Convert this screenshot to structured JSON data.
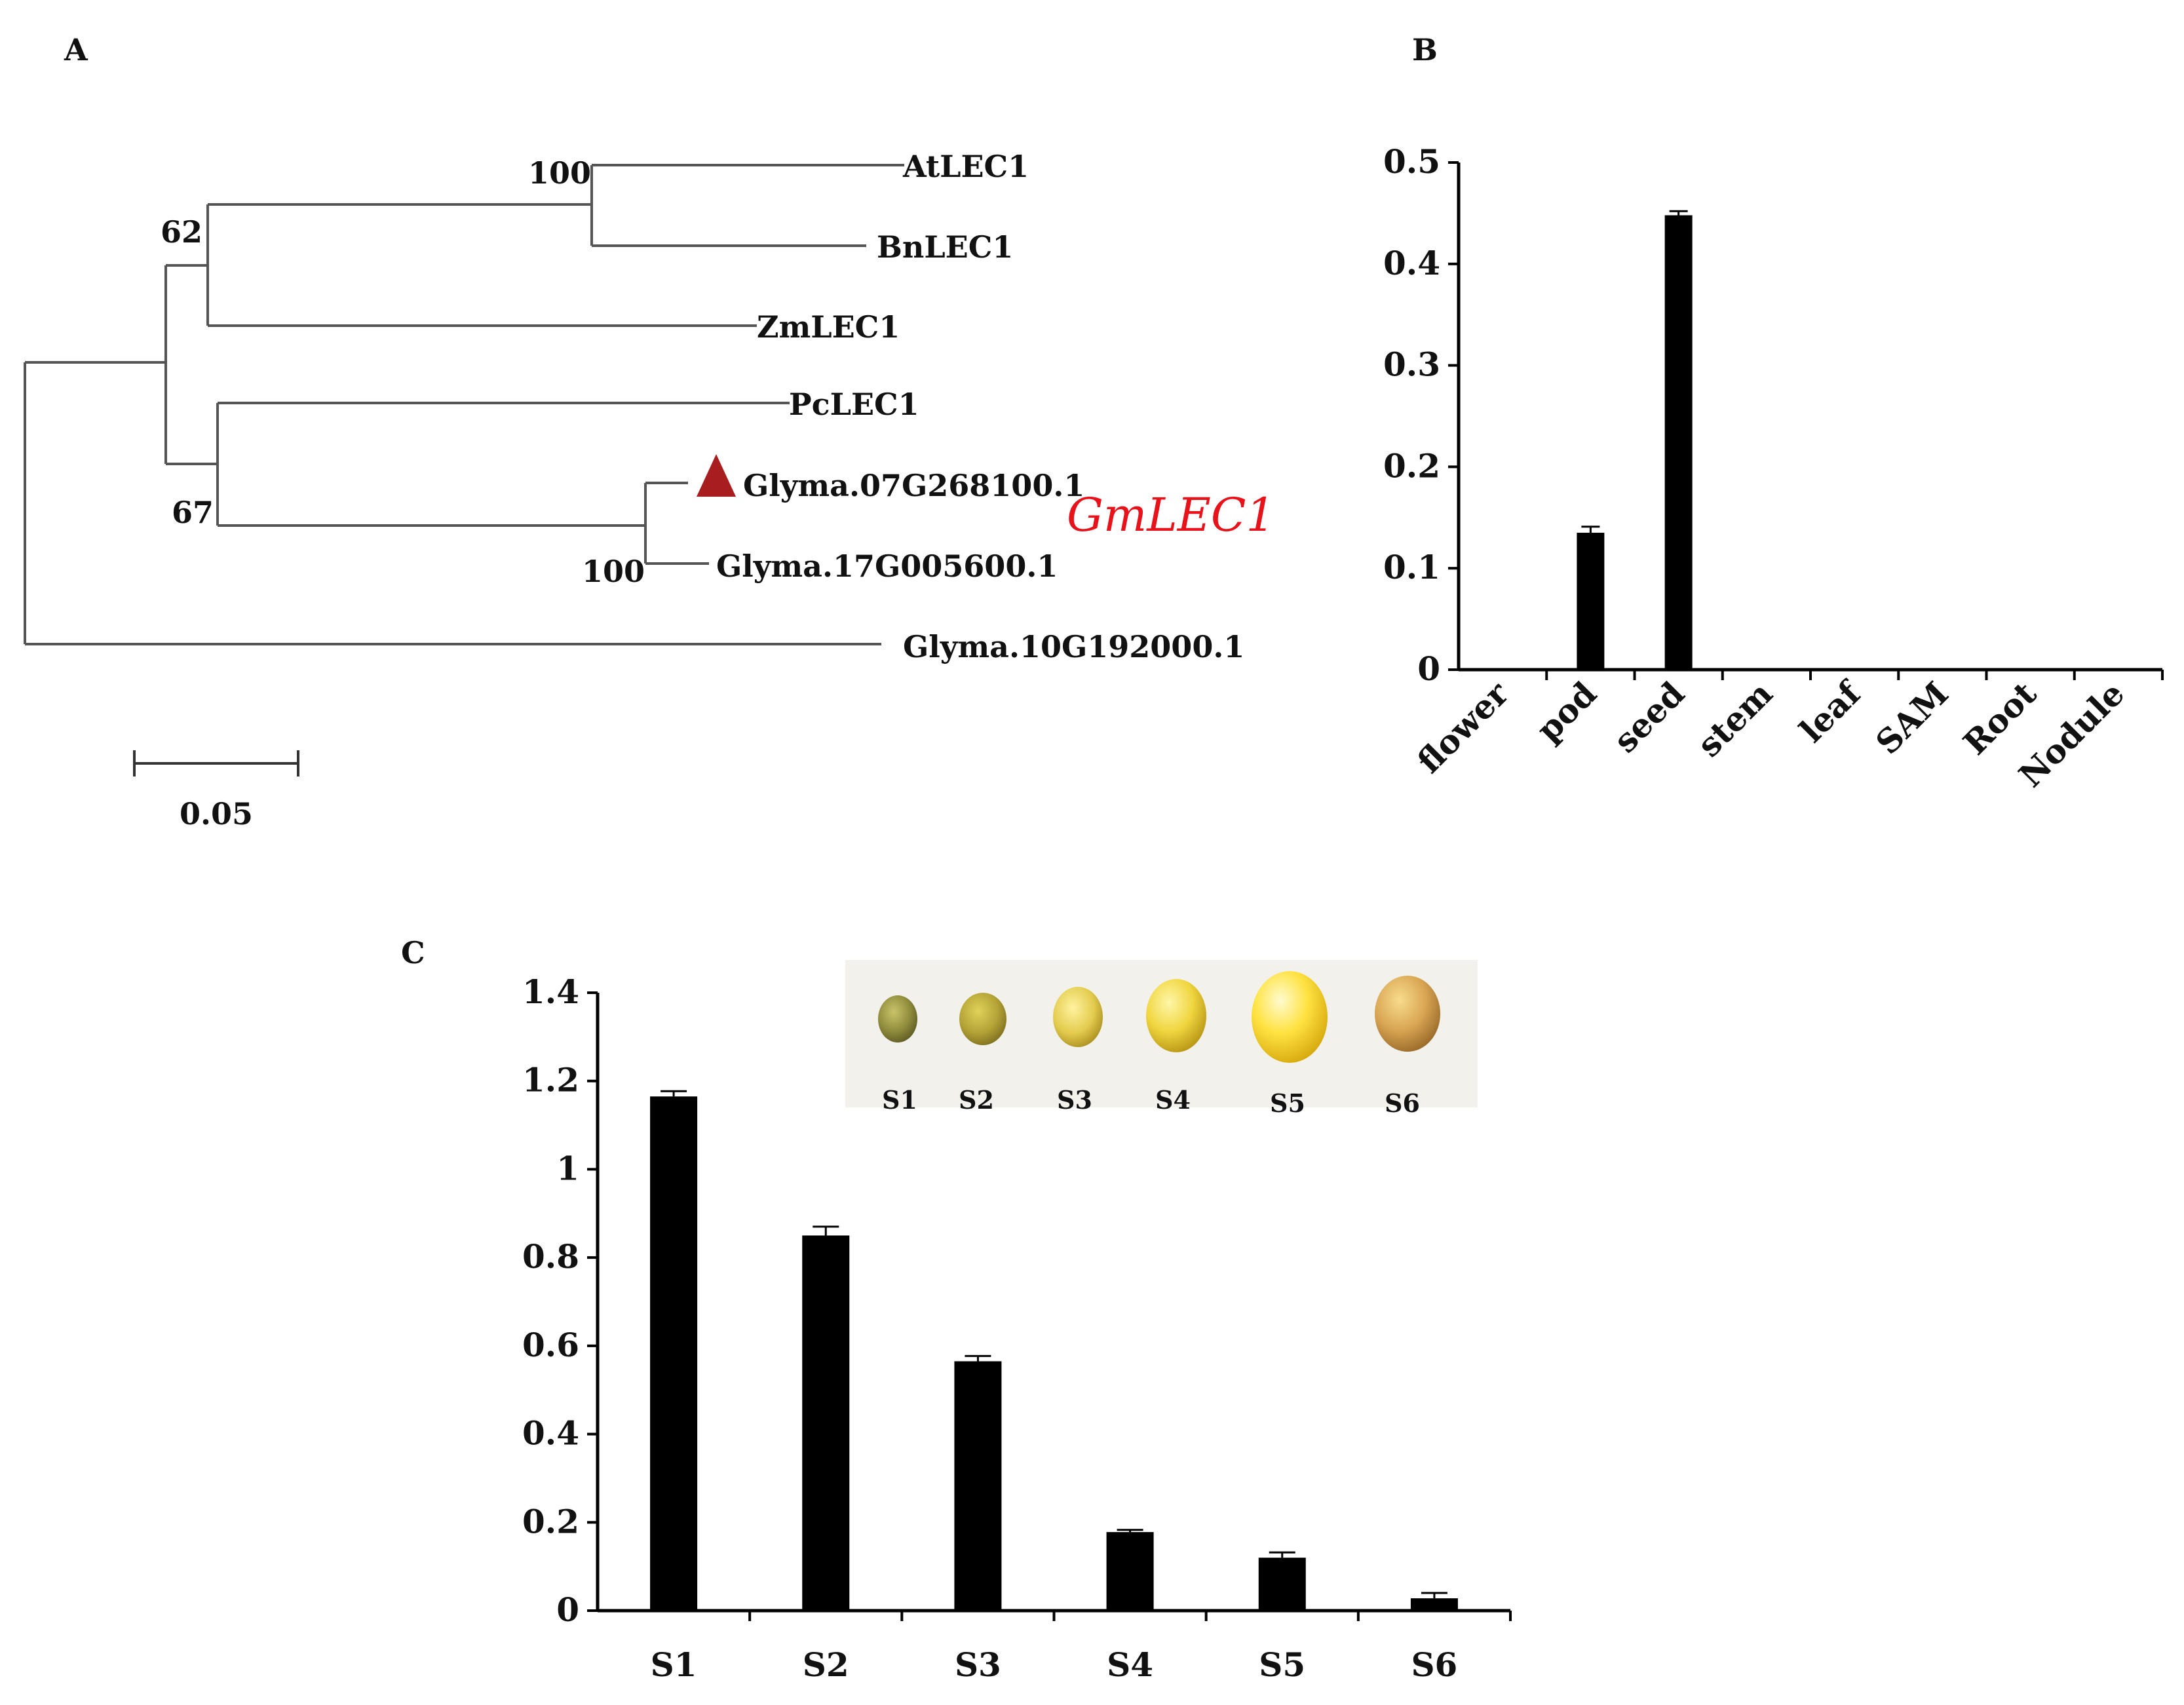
{
  "panels": {
    "a_label": "A",
    "b_label": "B",
    "c_label": "C"
  },
  "tree": {
    "taxa": [
      "AtLEC1",
      "BnLEC1",
      "ZmLEC1",
      "PcLEC1",
      "Glyma.07G268100.1",
      "Glyma.17G005600.1",
      "Glyma.10G192000.1"
    ],
    "bootstrap": [
      "100",
      "62",
      "67",
      "100"
    ],
    "highlight_label": "GmLEC1",
    "highlight_color": "#e8131a",
    "marker_color": "#a81d1d",
    "scale_bar_label": "0.05"
  },
  "seed_photo": {
    "stage_labels": [
      "S1",
      "S2",
      "S3",
      "S4",
      "S5",
      "S6"
    ]
  },
  "chart_data": [
    {
      "id": "B",
      "type": "bar",
      "title": "",
      "xlabel": "",
      "ylabel": "",
      "categories": [
        "flower",
        "pod",
        "seed",
        "stem",
        "leaf",
        "SAM",
        "Root",
        "Nodule"
      ],
      "values": [
        0,
        0.135,
        0.448,
        0,
        0,
        0,
        0,
        0
      ],
      "errors": [
        0,
        0.006,
        0.004,
        0,
        0,
        0,
        0,
        0
      ],
      "ylim": [
        0,
        0.5
      ],
      "yticks": [
        0,
        0.1,
        0.2,
        0.3,
        0.4,
        0.5
      ],
      "ytick_labels": [
        "0",
        "0.1",
        "0.2",
        "0.3",
        "0.4",
        "0.5"
      ],
      "bar_color": "#000000",
      "grid": false
    },
    {
      "id": "C",
      "type": "bar",
      "title": "",
      "xlabel": "",
      "ylabel": "",
      "categories": [
        "S1",
        "S2",
        "S3",
        "S4",
        "S5",
        "S6"
      ],
      "values": [
        1.165,
        0.85,
        0.565,
        0.178,
        0.12,
        0.028
      ],
      "errors": [
        0.012,
        0.02,
        0.012,
        0.005,
        0.012,
        0.012
      ],
      "ylim": [
        0,
        1.4
      ],
      "yticks": [
        0,
        0.2,
        0.4,
        0.6,
        0.8,
        1,
        1.2,
        1.4
      ],
      "ytick_labels": [
        "0",
        "0.2",
        "0.4",
        "0.6",
        "0.8",
        "1",
        "1.2",
        "1.4"
      ],
      "bar_color": "#000000",
      "grid": false
    }
  ]
}
